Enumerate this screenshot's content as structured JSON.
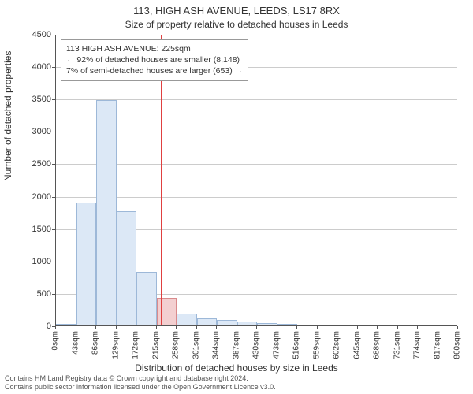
{
  "title": "113, HIGH ASH AVENUE, LEEDS, LS17 8RX",
  "subtitle": "Size of property relative to detached houses in Leeds",
  "y_axis_label": "Number of detached properties",
  "x_axis_label": "Distribution of detached houses by size in Leeds",
  "footer_line1": "Contains HM Land Registry data © Crown copyright and database right 2024.",
  "footer_line2": "Contains public sector information licensed under the Open Government Licence v3.0.",
  "legend": {
    "line1": "113 HIGH ASH AVENUE: 225sqm",
    "line2": "← 92% of detached houses are smaller (8,148)",
    "line3": "7% of semi-detached houses are larger (653) →"
  },
  "chart": {
    "type": "histogram",
    "background_color": "#ffffff",
    "grid_color": "#cccccc",
    "axis_color": "#555555",
    "bar_fill": "#dce8f6",
    "bar_stroke": "#9db8d8",
    "highlight_bar_fill": "#f3cfd0",
    "highlight_bar_stroke": "#d98a8c",
    "ref_line_color": "#e04040",
    "ref_line_x": 225,
    "xlim": [
      0,
      860
    ],
    "ylim": [
      0,
      4500
    ],
    "ytick_step": 500,
    "xtick_step": 43,
    "xtick_unit": "sqm",
    "highlight_bin_index": 5,
    "bins": [
      {
        "x": 0,
        "count": 30
      },
      {
        "x": 43,
        "count": 1900
      },
      {
        "x": 86,
        "count": 3480
      },
      {
        "x": 129,
        "count": 1760
      },
      {
        "x": 172,
        "count": 830
      },
      {
        "x": 215,
        "count": 430
      },
      {
        "x": 258,
        "count": 180
      },
      {
        "x": 301,
        "count": 110
      },
      {
        "x": 344,
        "count": 80
      },
      {
        "x": 387,
        "count": 60
      },
      {
        "x": 430,
        "count": 40
      },
      {
        "x": 473,
        "count": 30
      },
      {
        "x": 516,
        "count": 0
      },
      {
        "x": 559,
        "count": 0
      },
      {
        "x": 602,
        "count": 0
      },
      {
        "x": 645,
        "count": 0
      },
      {
        "x": 688,
        "count": 0
      },
      {
        "x": 731,
        "count": 0
      },
      {
        "x": 774,
        "count": 0
      },
      {
        "x": 817,
        "count": 0
      }
    ],
    "title_fontsize": 13,
    "subtitle_fontsize": 12,
    "axis_label_fontsize": 12,
    "tick_fontsize": 11,
    "xtick_fontsize": 10,
    "legend_fontsize": 10.5
  }
}
